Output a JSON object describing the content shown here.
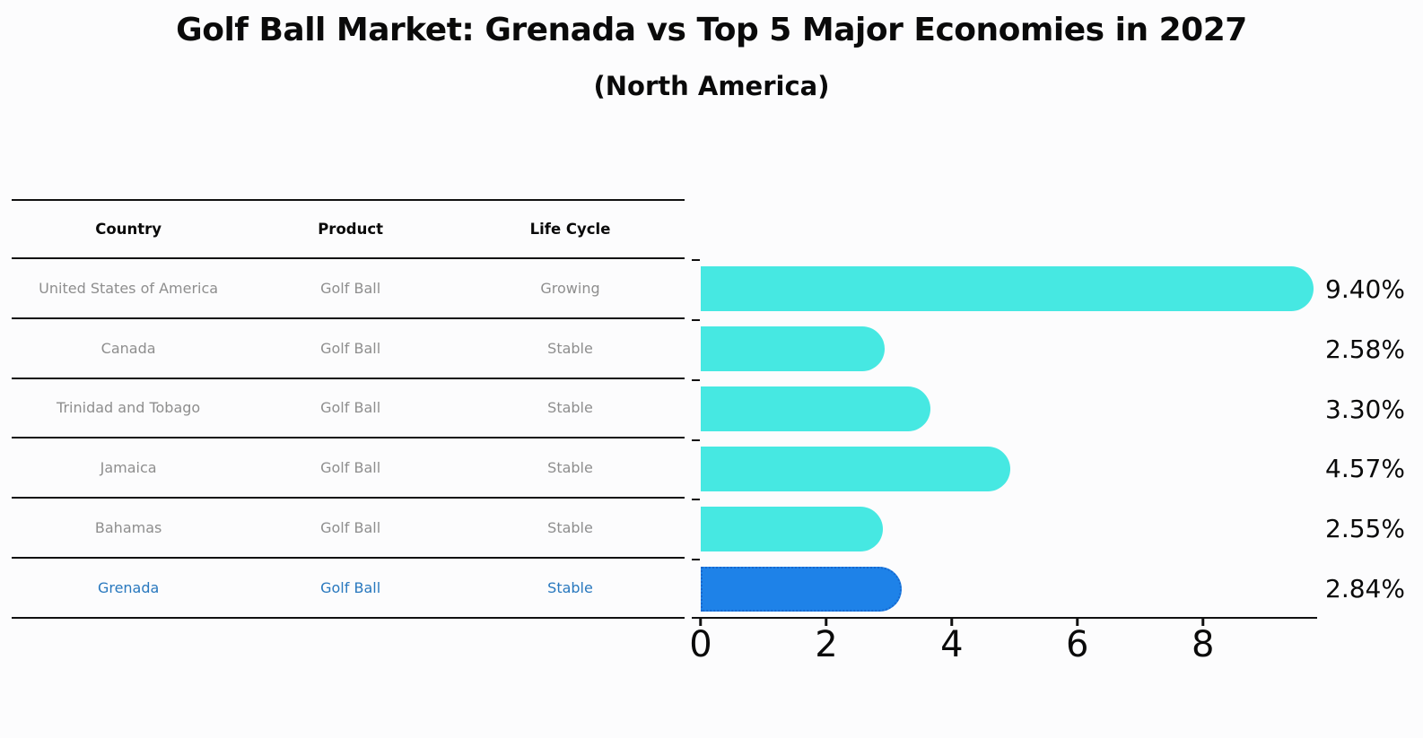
{
  "header": {
    "title": "Golf Ball Market: Grenada vs Top 5 Major Economies in 2027",
    "subtitle": "(North America)"
  },
  "table": {
    "headers": [
      "Country",
      "Product",
      "Life Cycle"
    ],
    "rows": [
      {
        "country": "United States of America",
        "product": "Golf Ball",
        "life_cycle": "Growing",
        "highlight": false
      },
      {
        "country": "Canada",
        "product": "Golf Ball",
        "life_cycle": "Stable",
        "highlight": false
      },
      {
        "country": "Trinidad and Tobago",
        "product": "Golf Ball",
        "life_cycle": "Stable",
        "highlight": false
      },
      {
        "country": "Jamaica",
        "product": "Golf Ball",
        "life_cycle": "Stable",
        "highlight": false
      },
      {
        "country": "Bahamas",
        "product": "Golf Ball",
        "life_cycle": "Stable",
        "highlight": false
      },
      {
        "country": "Grenada",
        "product": "Golf Ball",
        "life_cycle": "Stable",
        "highlight": true
      }
    ],
    "text_color": "#8e8e8e",
    "highlight_text_color": "#2878be"
  },
  "chart_data": {
    "type": "bar",
    "orientation": "horizontal",
    "title": "Golf Ball Market: Grenada vs Top 5 Major Economies in 2027",
    "subtitle": "(North America)",
    "categories": [
      "United States of America",
      "Canada",
      "Trinidad and Tobago",
      "Jamaica",
      "Bahamas",
      "Grenada"
    ],
    "values": [
      9.4,
      2.58,
      3.3,
      4.57,
      2.55,
      2.84
    ],
    "value_labels": [
      "9.40%",
      "2.58%",
      "3.30%",
      "4.57%",
      "2.55%",
      "2.84%"
    ],
    "xlabel": "",
    "ylabel": "",
    "xlim": [
      0,
      9.82
    ],
    "x_ticks": [
      0,
      2,
      4,
      6,
      8
    ],
    "x_tick_labels": [
      "0",
      "2",
      "4",
      "6",
      "8"
    ],
    "grid": false,
    "legend": "none",
    "bar_color": "#46e8e2",
    "highlight_bar_color": "#1e82e8",
    "highlight_border_color": "#1668cf",
    "highlight_index": 5
  }
}
